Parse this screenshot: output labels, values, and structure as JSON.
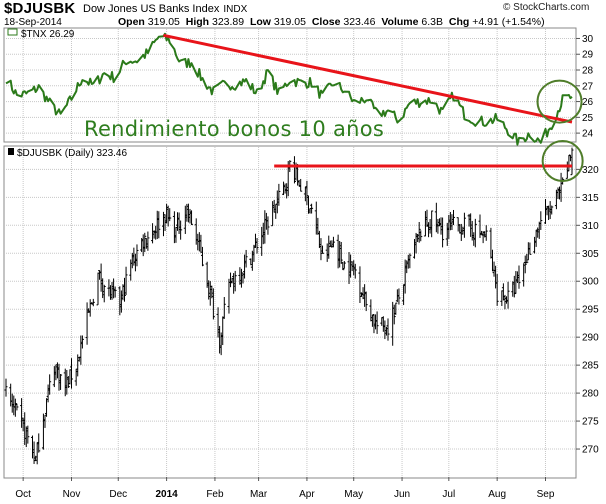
{
  "header": {
    "symbol": "$DJUSBK",
    "full_name": "Dow Jones US Banks Index",
    "exchange": "INDX",
    "date": "18-Sep-2014",
    "open_label": "Open",
    "open": "319.05",
    "high_label": "High",
    "high": "323.89",
    "low_label": "Low",
    "low": "319.05",
    "close_label": "Close",
    "close": "323.46",
    "volume_label": "Volume",
    "volume": "6.3B",
    "chg_label": "Chg",
    "chg": "+4.91 (+1.54%)",
    "watermark": "© StockCharts.com"
  },
  "annotation_text": "Rendimiento bonos 10 años",
  "colors": {
    "tnx_line": "#2b7a1a",
    "trendline": "#e8141a",
    "circle": "#4f7d2a",
    "price_bars": "#000000",
    "grid": "#c8c8c8",
    "annotation": "#2e7d1e"
  },
  "chart_data": [
    {
      "type": "line",
      "legend_label": "$TNX 26.29",
      "series_name": "$TNX",
      "last_value": 26.29,
      "ylim": [
        23.5,
        30.6
      ],
      "y_ticks": [
        24,
        25,
        26,
        27,
        28,
        29,
        30
      ],
      "x_range": [
        "2013-09-20",
        "2014-09-18"
      ],
      "points": [
        [
          "2013-09-20",
          27.5
        ],
        [
          "2013-09-27",
          26.4
        ],
        [
          "2013-10-04",
          26.5
        ],
        [
          "2013-10-11",
          26.9
        ],
        [
          "2013-10-18",
          25.9
        ],
        [
          "2013-10-25",
          25.1
        ],
        [
          "2013-11-01",
          26.2
        ],
        [
          "2013-11-08",
          27.5
        ],
        [
          "2013-11-15",
          27.0
        ],
        [
          "2013-11-22",
          27.8
        ],
        [
          "2013-11-29",
          27.5
        ],
        [
          "2013-12-06",
          28.6
        ],
        [
          "2013-12-13",
          28.6
        ],
        [
          "2013-12-20",
          29.1
        ],
        [
          "2013-12-27",
          30.1
        ],
        [
          "2014-01-03",
          29.9
        ],
        [
          "2014-01-10",
          28.4
        ],
        [
          "2014-01-17",
          28.5
        ],
        [
          "2014-01-24",
          27.4
        ],
        [
          "2014-01-31",
          26.6
        ],
        [
          "2014-02-07",
          27.1
        ],
        [
          "2014-02-14",
          27.1
        ],
        [
          "2014-02-21",
          27.3
        ],
        [
          "2014-02-28",
          26.5
        ],
        [
          "2014-03-07",
          27.9
        ],
        [
          "2014-03-14",
          26.5
        ],
        [
          "2014-03-21",
          27.4
        ],
        [
          "2014-03-28",
          27.2
        ],
        [
          "2014-04-04",
          27.2
        ],
        [
          "2014-04-11",
          26.3
        ],
        [
          "2014-04-18",
          27.2
        ],
        [
          "2014-04-25",
          26.7
        ],
        [
          "2014-05-02",
          25.9
        ],
        [
          "2014-05-09",
          26.2
        ],
        [
          "2014-05-16",
          25.2
        ],
        [
          "2014-05-23",
          25.4
        ],
        [
          "2014-05-30",
          24.8
        ],
        [
          "2014-06-06",
          25.9
        ],
        [
          "2014-06-13",
          26.0
        ],
        [
          "2014-06-20",
          26.1
        ],
        [
          "2014-06-27",
          25.3
        ],
        [
          "2014-07-04",
          26.4
        ],
        [
          "2014-07-11",
          25.2
        ],
        [
          "2014-07-18",
          24.8
        ],
        [
          "2014-07-25",
          24.7
        ],
        [
          "2014-08-01",
          24.9
        ],
        [
          "2014-08-08",
          24.2
        ],
        [
          "2014-08-15",
          23.4
        ],
        [
          "2014-08-22",
          24.0
        ],
        [
          "2014-08-29",
          23.4
        ],
        [
          "2014-09-05",
          24.6
        ],
        [
          "2014-09-12",
          26.1
        ],
        [
          "2014-09-18",
          26.3
        ]
      ],
      "trendline": {
        "start": [
          "2013-12-30",
          30.2
        ],
        "end": [
          "2014-09-18",
          24.7
        ]
      },
      "circle_center": [
        "2014-09-10",
        26.0
      ]
    },
    {
      "type": "ohlc",
      "legend_label": "$DJUSBK (Daily) 323.46",
      "series_name": "$DJUSBK",
      "last_value": 323.46,
      "ylim": [
        265,
        324
      ],
      "y_ticks": [
        270,
        275,
        280,
        285,
        290,
        295,
        300,
        305,
        310,
        315,
        320
      ],
      "x_range": [
        "2013-09-20",
        "2014-09-18"
      ],
      "x_tick_labels": [
        {
          "date": "2013-10-01",
          "label": "Oct"
        },
        {
          "date": "2013-11-01",
          "label": "Nov"
        },
        {
          "date": "2013-12-01",
          "label": "Dec"
        },
        {
          "date": "2014-01-01",
          "label": "2014"
        },
        {
          "date": "2014-02-01",
          "label": "Feb"
        },
        {
          "date": "2014-03-01",
          "label": "Mar"
        },
        {
          "date": "2014-04-01",
          "label": "Apr"
        },
        {
          "date": "2014-05-01",
          "label": "May"
        },
        {
          "date": "2014-06-01",
          "label": "Jun"
        },
        {
          "date": "2014-07-01",
          "label": "Jul"
        },
        {
          "date": "2014-08-01",
          "label": "Aug"
        },
        {
          "date": "2014-09-01",
          "label": "Sep"
        }
      ],
      "close_path": [
        [
          "2013-09-20",
          280
        ],
        [
          "2013-09-27",
          276
        ],
        [
          "2013-10-04",
          272
        ],
        [
          "2013-10-09",
          268
        ],
        [
          "2013-10-14",
          276
        ],
        [
          "2013-10-21",
          285
        ],
        [
          "2013-10-28",
          281
        ],
        [
          "2013-11-04",
          285
        ],
        [
          "2013-11-11",
          293
        ],
        [
          "2013-11-18",
          301
        ],
        [
          "2013-11-25",
          298
        ],
        [
          "2013-12-02",
          296
        ],
        [
          "2013-12-09",
          303
        ],
        [
          "2013-12-16",
          307
        ],
        [
          "2013-12-23",
          309
        ],
        [
          "2013-12-31",
          312
        ],
        [
          "2014-01-07",
          309
        ],
        [
          "2014-01-14",
          313
        ],
        [
          "2014-01-21",
          307
        ],
        [
          "2014-01-28",
          299
        ],
        [
          "2014-02-04",
          290
        ],
        [
          "2014-02-11",
          300
        ],
        [
          "2014-02-18",
          302
        ],
        [
          "2014-02-25",
          305
        ],
        [
          "2014-03-04",
          309
        ],
        [
          "2014-03-11",
          313
        ],
        [
          "2014-03-18",
          317
        ],
        [
          "2014-03-21",
          321
        ],
        [
          "2014-03-28",
          317
        ],
        [
          "2014-04-04",
          313
        ],
        [
          "2014-04-11",
          304
        ],
        [
          "2014-04-18",
          307
        ],
        [
          "2014-04-25",
          303
        ],
        [
          "2014-05-02",
          302
        ],
        [
          "2014-05-09",
          296
        ],
        [
          "2014-05-16",
          292
        ],
        [
          "2014-05-23",
          292
        ],
        [
          "2014-05-30",
          297
        ],
        [
          "2014-06-06",
          304
        ],
        [
          "2014-06-13",
          309
        ],
        [
          "2014-06-20",
          311
        ],
        [
          "2014-06-27",
          309
        ],
        [
          "2014-07-04",
          310
        ],
        [
          "2014-07-11",
          310
        ],
        [
          "2014-07-18",
          309
        ],
        [
          "2014-07-25",
          308
        ],
        [
          "2014-08-01",
          298
        ],
        [
          "2014-08-08",
          297
        ],
        [
          "2014-08-15",
          300
        ],
        [
          "2014-08-22",
          306
        ],
        [
          "2014-08-29",
          311
        ],
        [
          "2014-09-05",
          313
        ],
        [
          "2014-09-12",
          317
        ],
        [
          "2014-09-18",
          323.46
        ]
      ],
      "resistance_line": {
        "start": [
          "2014-03-11",
          320.6
        ],
        "end": [
          "2014-09-18",
          320.6
        ]
      },
      "circle_center": [
        "2014-09-12",
        321.5
      ],
      "last_bar": {
        "open": 319.05,
        "high": 323.89,
        "low": 319.05,
        "close": 323.46
      }
    }
  ]
}
